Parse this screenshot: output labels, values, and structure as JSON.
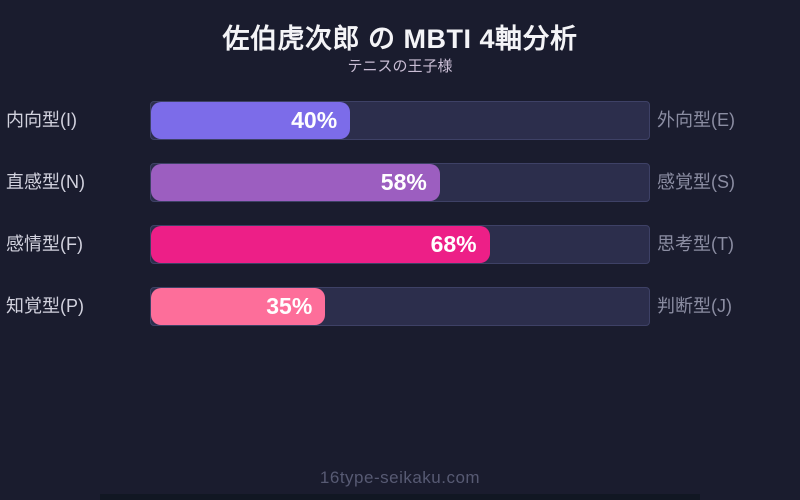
{
  "page": {
    "title": "佐伯虎次郎 の MBTI 4軸分析",
    "subtitle": "テニスの王子様",
    "footer": "16type-seikaku.com"
  },
  "chart_data": {
    "type": "bar",
    "orientation": "horizontal",
    "title": "佐伯虎次郎 の MBTI 4軸分析",
    "subtitle": "テニスの王子様",
    "value_range": [
      0,
      100
    ],
    "grid": false,
    "legend": false,
    "background_color": "#1a1c2e",
    "track_color": "#2c2e4c",
    "title_color": "#f4f4f7",
    "rows": [
      {
        "left_label": "内向型(I)",
        "right_label": "外向型(E)",
        "value": 40,
        "value_label": "40%",
        "color": "#7c6ce9"
      },
      {
        "left_label": "直感型(N)",
        "right_label": "感覚型(S)",
        "value": 58,
        "value_label": "58%",
        "color": "#9c5ec0"
      },
      {
        "left_label": "感情型(F)",
        "right_label": "思考型(T)",
        "value": 68,
        "value_label": "68%",
        "color": "#ed1f87"
      },
      {
        "left_label": "知覚型(P)",
        "right_label": "判断型(J)",
        "value": 35,
        "value_label": "35%",
        "color": "#fd6e9a"
      }
    ]
  }
}
